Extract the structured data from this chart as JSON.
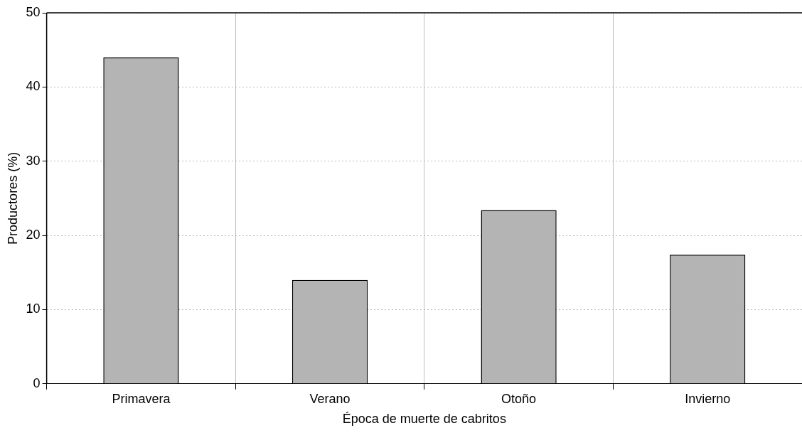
{
  "chart_data": {
    "type": "bar",
    "xlabel": "Época de muerte de cabritos",
    "ylabel": "Productores (%)",
    "categories": [
      "Primavera",
      "Verano",
      "Otoño",
      "Invierno"
    ],
    "values": [
      44,
      14,
      23.4,
      17.4
    ],
    "color": "#b4b4b4",
    "ylim": [
      0,
      50
    ],
    "yticks": [
      0,
      10,
      20,
      30,
      40,
      50
    ],
    "grid": true
  }
}
